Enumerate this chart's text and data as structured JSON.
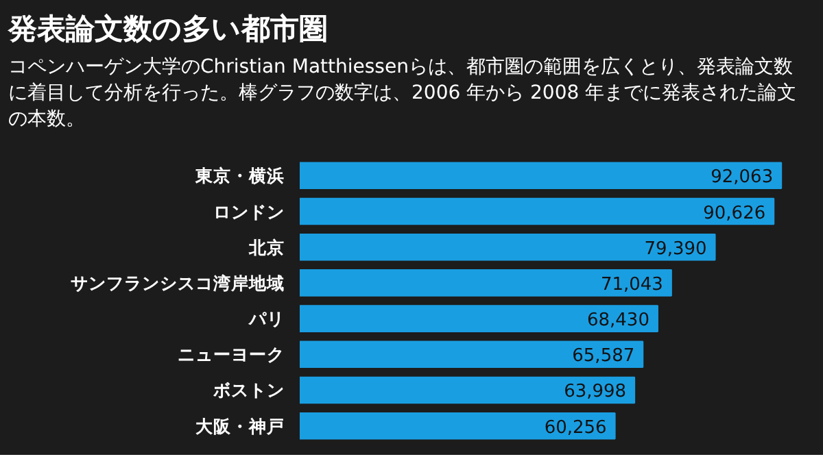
{
  "chart_data": {
    "type": "bar",
    "orientation": "horizontal",
    "title": "発表論文数の多い都市圏",
    "subtitle": "コペンハーゲン大学のChristian Matthiessenらは、都市圏の範囲を広くとり、発表論文数に着目して分析を行った。棒グラフの数字は、2006 年から 2008 年までに発表された論文の本数。",
    "categories": [
      "東京・横浜",
      "ロンドン",
      "北京",
      "サンフランシスコ湾岸地域",
      "パリ",
      "ニューヨーク",
      "ボストン",
      "大阪・神戸"
    ],
    "values": [
      92063,
      90626,
      79390,
      71043,
      68430,
      65587,
      63998,
      60256
    ],
    "color": "#1a9ee2",
    "value_labels": [
      "92,063",
      "90,626",
      "79,390",
      "71,043",
      "68,430",
      "65,587",
      "63,998",
      "60,256"
    ],
    "grid": false
  }
}
